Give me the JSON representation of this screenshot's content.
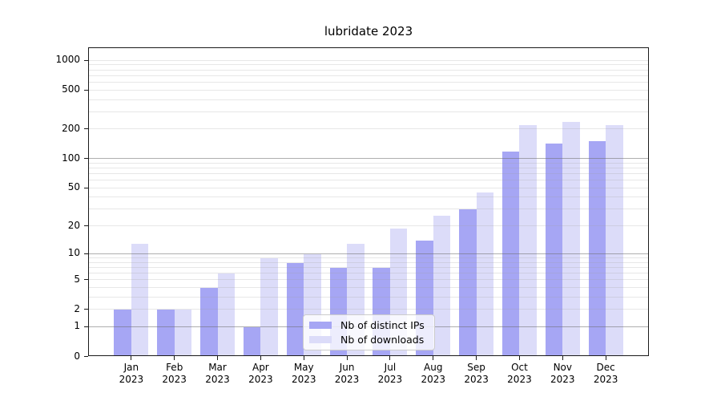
{
  "chart_data": {
    "type": "bar",
    "title": "lubridate 2023",
    "categories": [
      "Jan 2023",
      "Feb 2023",
      "Mar 2023",
      "Apr 2023",
      "May 2023",
      "Jun 2023",
      "Jul 2023",
      "Aug 2023",
      "Sep 2023",
      "Oct 2023",
      "Nov 2023",
      "Dec 2023"
    ],
    "series": [
      {
        "name": "Nb of distinct IPs",
        "color": "#a6a6f4",
        "values": [
          2,
          2,
          4,
          1,
          8,
          7,
          7,
          14,
          30,
          120,
          145,
          153
        ]
      },
      {
        "name": "Nb of downloads",
        "color": "#dcdcf9",
        "values": [
          13,
          2,
          6,
          9,
          10,
          13,
          19,
          26,
          45,
          222,
          240,
          222
        ]
      }
    ],
    "xlabel": "",
    "ylabel": "",
    "yscale": "log1p",
    "ylim": [
      0,
      1340
    ],
    "y_ticks": [
      0,
      1,
      2,
      5,
      10,
      20,
      50,
      100,
      200,
      500,
      1000
    ],
    "y_major_gridlines": [
      1,
      10,
      100
    ],
    "y_minor_gridlines": [
      2,
      3,
      4,
      5,
      6,
      7,
      8,
      9,
      20,
      30,
      40,
      50,
      60,
      70,
      80,
      90,
      200,
      300,
      400,
      500,
      600,
      700,
      800,
      900,
      1000
    ],
    "grid": true,
    "bar_width_fraction": 0.4,
    "legend_position": "lower center"
  }
}
